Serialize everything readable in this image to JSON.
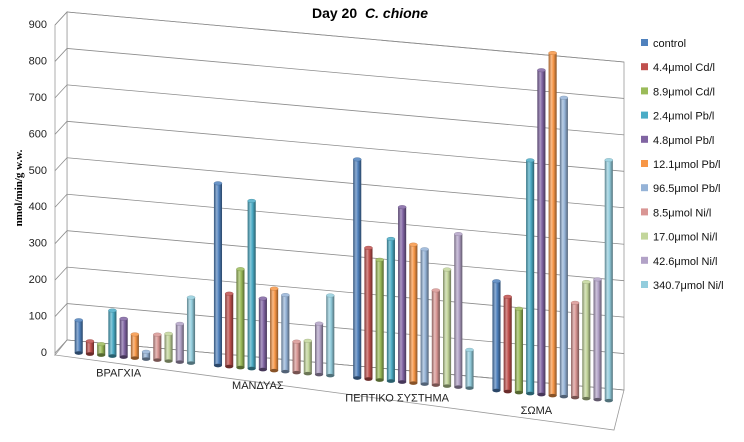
{
  "chart_data": {
    "type": "bar",
    "title_main": "Day 20",
    "title_species": "C. chione",
    "ylabel": "nmol/min/g w.w.",
    "ylim": [
      0,
      900
    ],
    "yticks": [
      "0",
      "100",
      "200",
      "300",
      "400",
      "500",
      "600",
      "700",
      "800",
      "900"
    ],
    "categories": [
      "ΒΡΑΓΧΙΑ",
      "ΜΑΝΔΥΑΣ",
      "ΠΕΠΤΙΚΟ ΣΥΣΤΗΜΑ",
      "ΣΩΜΑ"
    ],
    "grid": true,
    "legend_position": "right",
    "series": [
      {
        "name": "control",
        "color": "#4F81BD",
        "values": [
          90,
          500,
          600,
          300
        ]
      },
      {
        "name": "4.4μmol Cd/l",
        "color": "#C0504D",
        "values": [
          35,
          200,
          360,
          260
        ]
      },
      {
        "name": "8.9μmol Cd/l",
        "color": "#9BBB59",
        "values": [
          30,
          270,
          330,
          230
        ]
      },
      {
        "name": "2.4μmol Pb/l",
        "color": "#4BACC6",
        "values": [
          125,
          460,
          390,
          640
        ]
      },
      {
        "name": "4.8μmol Pb/l",
        "color": "#8064A2",
        "values": [
          105,
          195,
          480,
          890
        ]
      },
      {
        "name": "12.1μmol Pb/l",
        "color": "#F79646",
        "values": [
          65,
          225,
          380,
          940
        ]
      },
      {
        "name": "96.5μmol Pb/l",
        "color": "#95B3D7",
        "values": [
          20,
          210,
          370,
          820
        ]
      },
      {
        "name": "8.5μmol Ni/l",
        "color": "#D99694",
        "values": [
          70,
          85,
          260,
          260
        ]
      },
      {
        "name": "17.0μmol Ni/l",
        "color": "#C3D69B",
        "values": [
          75,
          90,
          320,
          320
        ]
      },
      {
        "name": "42.6μmol Ni/l",
        "color": "#B2A2C7",
        "values": [
          105,
          140,
          420,
          330
        ]
      },
      {
        "name": "340.7μmol Ni/l",
        "color": "#93CDDD",
        "values": [
          180,
          220,
          105,
          660
        ]
      }
    ]
  }
}
